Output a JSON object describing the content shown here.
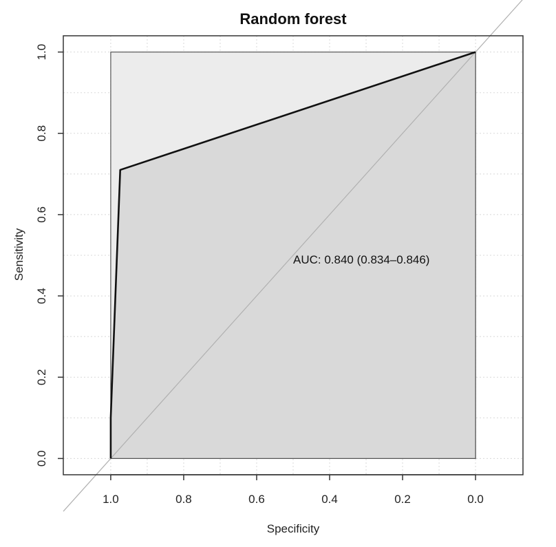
{
  "chart_data": {
    "type": "line",
    "title": "Random forest",
    "xlabel": "Specificity",
    "ylabel": "Sensitivity",
    "x_reversed": true,
    "xlim": [
      1.13,
      -0.13
    ],
    "ylim": [
      -0.04,
      1.04
    ],
    "x_ticks": [
      1.0,
      0.8,
      0.6,
      0.4,
      0.2,
      0.0
    ],
    "x_tick_labels": [
      "1.0",
      "0.8",
      "0.6",
      "0.4",
      "0.2",
      "0.0"
    ],
    "y_ticks": [
      0.0,
      0.2,
      0.4,
      0.6,
      0.8,
      1.0
    ],
    "y_tick_labels": [
      "0.0",
      "0.2",
      "0.4",
      "0.6",
      "0.8",
      "1.0"
    ],
    "grid": true,
    "series": [
      {
        "x": [
          1.0,
          1.0,
          0.974,
          0.0
        ],
        "y": [
          0.0,
          0.1,
          0.71,
          1.0
        ]
      }
    ],
    "annotation": "AUC: 0.840 (0.834–0.846)",
    "colors": {
      "outer_region": "#ececec",
      "auc_region": "#d9d9d9",
      "curve": "#111111",
      "diagonal": "#b0b0b0",
      "grid": "#d8d8d8"
    }
  }
}
